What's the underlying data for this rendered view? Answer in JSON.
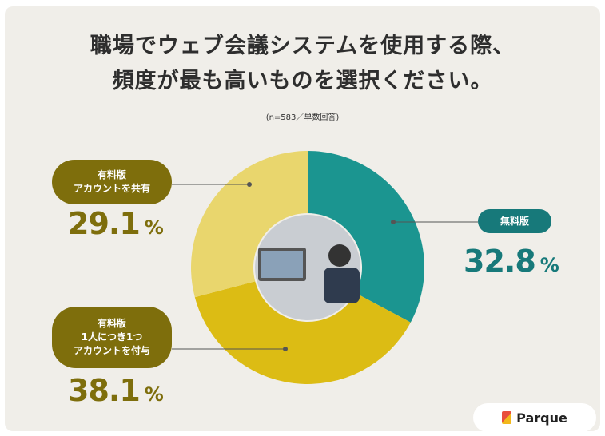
{
  "chart_data": {
    "type": "donut",
    "title": "職場でウェブ会議システムを使用する際、\n頻度が最も高いものを選択ください。",
    "subtitle": "(n=583／単数回答)",
    "categories": [
      "無料版",
      "有料版\n1人につき1つ\nアカウントを付与",
      "有料版\nアカウントを共有"
    ],
    "values": [
      32.8,
      38.1,
      29.1
    ],
    "unit": "%",
    "colors": [
      "#1b9590",
      "#dcbc14",
      "#e9d66d"
    ],
    "label_colors": [
      "#17797a",
      "#7e6e0c",
      "#7e6e0c"
    ],
    "brand": "Parque"
  }
}
